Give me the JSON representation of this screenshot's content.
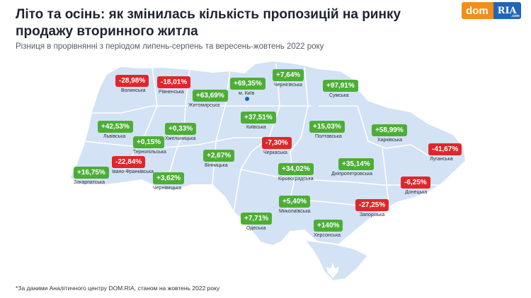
{
  "title": "Літо та осінь: як змінилась кількість пропозицій на ринку продажу вторинного житла",
  "subtitle": "Різниця в прорівнянні з періодом липень-серпень та вересень-жовтень 2022 року",
  "logo": {
    "dom": "dom",
    "ria": "RIA",
    "com": ".com"
  },
  "kyiv_city_label": "м. Київ",
  "footnote": "*За даними Аналітичного центру DOM.RIA, станом на жовтень 2022 року",
  "colors": {
    "positive": "#4dae36",
    "negative": "#e0262b",
    "map": "#d3e2f4",
    "borders": "#ffffff"
  },
  "regions": [
    {
      "name": "Волинська",
      "value": "-28,98%"
    },
    {
      "name": "Рівненська",
      "value": "-18,01%"
    },
    {
      "name": "Житомирська",
      "value": "+63,69%"
    },
    {
      "name": "Київська",
      "value": "+37,51%"
    },
    {
      "name": "Чернігівська",
      "value": "+7,64%"
    },
    {
      "name": "Сумська",
      "value": "+97,91%"
    },
    {
      "name": "Львівська",
      "value": "+42,53%"
    },
    {
      "name": "Хмельницька",
      "value": "+0,33%"
    },
    {
      "name": "Тернопільська",
      "value": "+0,15%"
    },
    {
      "name": "Вінницька",
      "value": "+2,67%"
    },
    {
      "name": "Черкаська",
      "value": "-7,30%"
    },
    {
      "name": "Полтавська",
      "value": "+15,03%"
    },
    {
      "name": "Харківська",
      "value": "+58,99%"
    },
    {
      "name": "Луганська",
      "value": "-41,67%"
    },
    {
      "name": "Закарпатська",
      "value": "+16,75%"
    },
    {
      "name": "Івано-Франківська",
      "value": "-22,84%"
    },
    {
      "name": "Чернівецька",
      "value": "+3,62%"
    },
    {
      "name": "Кіровоградська",
      "value": "+34,02%"
    },
    {
      "name": "Дніпропетровська",
      "value": "+35,14%"
    },
    {
      "name": "Донецька",
      "value": "-6,25%"
    },
    {
      "name": "Миколаївська",
      "value": "+5,40%"
    },
    {
      "name": "Запорізька",
      "value": "-27,25%"
    },
    {
      "name": "Одеська",
      "value": "+7,71%"
    },
    {
      "name": "Херсонська",
      "value": "+140%"
    }
  ],
  "kyiv_city": {
    "value": "+69,35%"
  }
}
